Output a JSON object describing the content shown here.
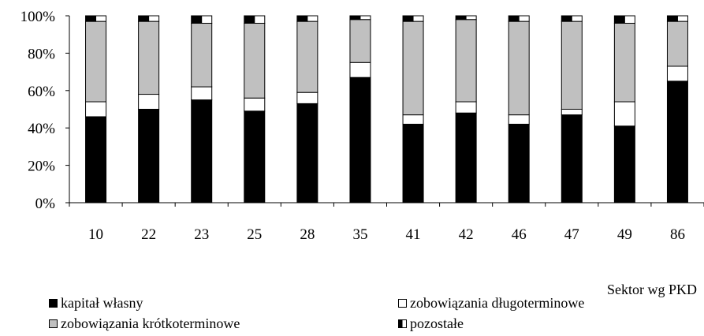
{
  "chart_data": {
    "type": "bar",
    "stacked": "percent",
    "categories": [
      "10",
      "22",
      "23",
      "25",
      "28",
      "35",
      "41",
      "42",
      "46",
      "47",
      "49",
      "86"
    ],
    "xlabel": "Sektor wg PKD",
    "ylabel": "",
    "ylim": [
      0,
      100
    ],
    "yticks": [
      "0%",
      "20%",
      "40%",
      "60%",
      "80%",
      "100%"
    ],
    "grid": false,
    "legend_position": "bottom",
    "series": [
      {
        "name": "kapitał własny",
        "color": "#000000",
        "values": [
          46,
          50,
          55,
          49,
          53,
          67,
          42,
          48,
          42,
          47,
          41,
          65
        ]
      },
      {
        "name": "zobowiązania długoterminowe",
        "color": "#ffffff",
        "values": [
          8,
          8,
          7,
          7,
          6,
          8,
          5,
          6,
          5,
          3,
          13,
          8
        ]
      },
      {
        "name": "zobowiązania krótkoterminowe",
        "color": "#c0c0c0",
        "values": [
          43,
          39,
          34,
          40,
          38,
          23,
          50,
          44,
          50,
          47,
          42,
          24
        ]
      },
      {
        "name": "pozostałe",
        "color": "#ffffff",
        "values": [
          3,
          3,
          4,
          4,
          3,
          2,
          3,
          2,
          3,
          3,
          4,
          3
        ]
      }
    ]
  }
}
